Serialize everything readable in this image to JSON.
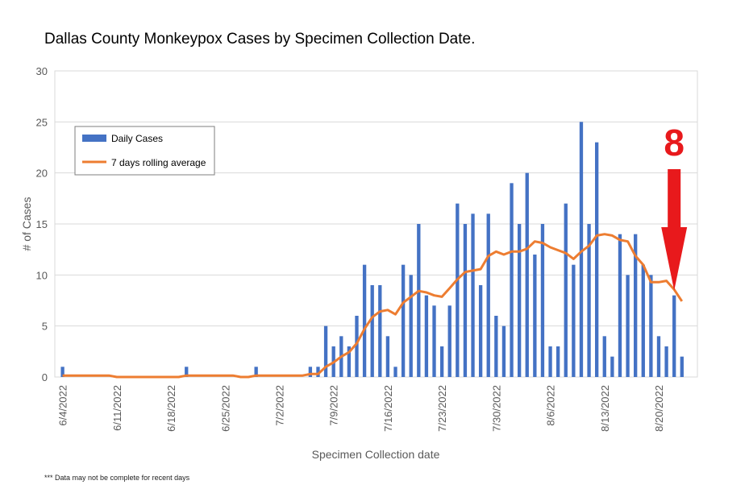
{
  "chart_data": {
    "type": "bar",
    "title": "Dallas County Monkeypox Cases by Specimen Collection Date.",
    "xlabel": "Specimen Collection date",
    "ylabel": "# of Cases",
    "ylim": [
      0,
      30
    ],
    "yticks": [
      0,
      5,
      10,
      15,
      20,
      25,
      30
    ],
    "xlim": [
      "6/3/2022",
      "8/25/2022"
    ],
    "xticks": [
      "6/4/2022",
      "6/11/2022",
      "6/18/2022",
      "6/25/2022",
      "7/2/2022",
      "7/9/2022",
      "7/16/2022",
      "7/23/2022",
      "7/30/2022",
      "8/6/2022",
      "8/13/2022",
      "8/20/2022"
    ],
    "grid": true,
    "legend": "top-left",
    "colors": {
      "bars": "#4472c4",
      "line": "#ed7d31",
      "annotation": "#e8191c"
    },
    "series": [
      {
        "name": "Daily Cases",
        "kind": "bar",
        "points": [
          [
            "6/4/2022",
            1
          ],
          [
            "6/20/2022",
            1
          ],
          [
            "6/29/2022",
            1
          ],
          [
            "7/6/2022",
            1
          ],
          [
            "7/7/2022",
            1
          ],
          [
            "7/8/2022",
            5
          ],
          [
            "7/9/2022",
            3
          ],
          [
            "7/10/2022",
            4
          ],
          [
            "7/11/2022",
            3
          ],
          [
            "7/12/2022",
            6
          ],
          [
            "7/13/2022",
            11
          ],
          [
            "7/14/2022",
            9
          ],
          [
            "7/15/2022",
            9
          ],
          [
            "7/16/2022",
            4
          ],
          [
            "7/17/2022",
            1
          ],
          [
            "7/18/2022",
            11
          ],
          [
            "7/19/2022",
            10
          ],
          [
            "7/20/2022",
            15
          ],
          [
            "7/21/2022",
            8
          ],
          [
            "7/22/2022",
            7
          ],
          [
            "7/23/2022",
            3
          ],
          [
            "7/24/2022",
            7
          ],
          [
            "7/25/2022",
            17
          ],
          [
            "7/26/2022",
            15
          ],
          [
            "7/27/2022",
            16
          ],
          [
            "7/28/2022",
            9
          ],
          [
            "7/29/2022",
            16
          ],
          [
            "7/30/2022",
            6
          ],
          [
            "7/31/2022",
            5
          ],
          [
            "8/1/2022",
            19
          ],
          [
            "8/2/2022",
            15
          ],
          [
            "8/3/2022",
            20
          ],
          [
            "8/4/2022",
            12
          ],
          [
            "8/5/2022",
            15
          ],
          [
            "8/6/2022",
            3
          ],
          [
            "8/7/2022",
            3
          ],
          [
            "8/8/2022",
            17
          ],
          [
            "8/9/2022",
            11
          ],
          [
            "8/10/2022",
            25
          ],
          [
            "8/11/2022",
            15
          ],
          [
            "8/12/2022",
            23
          ],
          [
            "8/13/2022",
            4
          ],
          [
            "8/14/2022",
            2
          ],
          [
            "8/15/2022",
            14
          ],
          [
            "8/16/2022",
            10
          ],
          [
            "8/17/2022",
            14
          ],
          [
            "8/18/2022",
            11
          ],
          [
            "8/19/2022",
            10
          ],
          [
            "8/20/2022",
            4
          ],
          [
            "8/21/2022",
            3
          ],
          [
            "8/22/2022",
            8
          ],
          [
            "8/23/2022",
            2
          ]
        ]
      },
      {
        "name": "7 days rolling average",
        "kind": "line",
        "points": [
          [
            "6/4/2022",
            0.14
          ],
          [
            "6/10/2022",
            0.14
          ],
          [
            "6/11/2022",
            0
          ],
          [
            "6/19/2022",
            0
          ],
          [
            "6/20/2022",
            0.14
          ],
          [
            "6/26/2022",
            0.14
          ],
          [
            "6/27/2022",
            0
          ],
          [
            "6/28/2022",
            0
          ],
          [
            "6/29/2022",
            0.14
          ],
          [
            "7/4/2022",
            0.14
          ],
          [
            "7/5/2022",
            0.14
          ],
          [
            "7/6/2022",
            0.29
          ],
          [
            "7/7/2022",
            0.29
          ],
          [
            "7/8/2022",
            1.0
          ],
          [
            "7/9/2022",
            1.43
          ],
          [
            "7/10/2022",
            2.0
          ],
          [
            "7/11/2022",
            2.43
          ],
          [
            "7/12/2022",
            3.29
          ],
          [
            "7/13/2022",
            4.71
          ],
          [
            "7/14/2022",
            5.86
          ],
          [
            "7/15/2022",
            6.43
          ],
          [
            "7/16/2022",
            6.57
          ],
          [
            "7/17/2022",
            6.14
          ],
          [
            "7/18/2022",
            7.29
          ],
          [
            "7/19/2022",
            7.86
          ],
          [
            "7/20/2022",
            8.43
          ],
          [
            "7/21/2022",
            8.29
          ],
          [
            "7/22/2022",
            8.0
          ],
          [
            "7/23/2022",
            7.86
          ],
          [
            "7/24/2022",
            8.71
          ],
          [
            "7/25/2022",
            9.57
          ],
          [
            "7/26/2022",
            10.29
          ],
          [
            "7/27/2022",
            10.43
          ],
          [
            "7/28/2022",
            10.57
          ],
          [
            "7/29/2022",
            11.86
          ],
          [
            "7/30/2022",
            12.29
          ],
          [
            "7/31/2022",
            12.0
          ],
          [
            "8/1/2022",
            12.29
          ],
          [
            "8/2/2022",
            12.29
          ],
          [
            "8/3/2022",
            12.57
          ],
          [
            "8/4/2022",
            13.29
          ],
          [
            "8/5/2022",
            13.14
          ],
          [
            "8/6/2022",
            12.71
          ],
          [
            "8/7/2022",
            12.43
          ],
          [
            "8/8/2022",
            12.14
          ],
          [
            "8/9/2022",
            11.57
          ],
          [
            "8/10/2022",
            12.29
          ],
          [
            "8/11/2022",
            12.86
          ],
          [
            "8/12/2022",
            13.86
          ],
          [
            "8/13/2022",
            14.0
          ],
          [
            "8/14/2022",
            13.86
          ],
          [
            "8/15/2022",
            13.43
          ],
          [
            "8/16/2022",
            13.29
          ],
          [
            "8/17/2022",
            11.86
          ],
          [
            "8/18/2022",
            11.0
          ],
          [
            "8/19/2022",
            9.29
          ],
          [
            "8/20/2022",
            9.29
          ],
          [
            "8/21/2022",
            9.43
          ],
          [
            "8/22/2022",
            8.57
          ],
          [
            "8/23/2022",
            7.43
          ]
        ]
      }
    ],
    "annotations": [
      {
        "text": "8",
        "target": [
          "8/22/2022",
          8
        ],
        "style": "red-arrow-down"
      }
    ]
  },
  "footnote": "*** Data may not be complete for recent days"
}
